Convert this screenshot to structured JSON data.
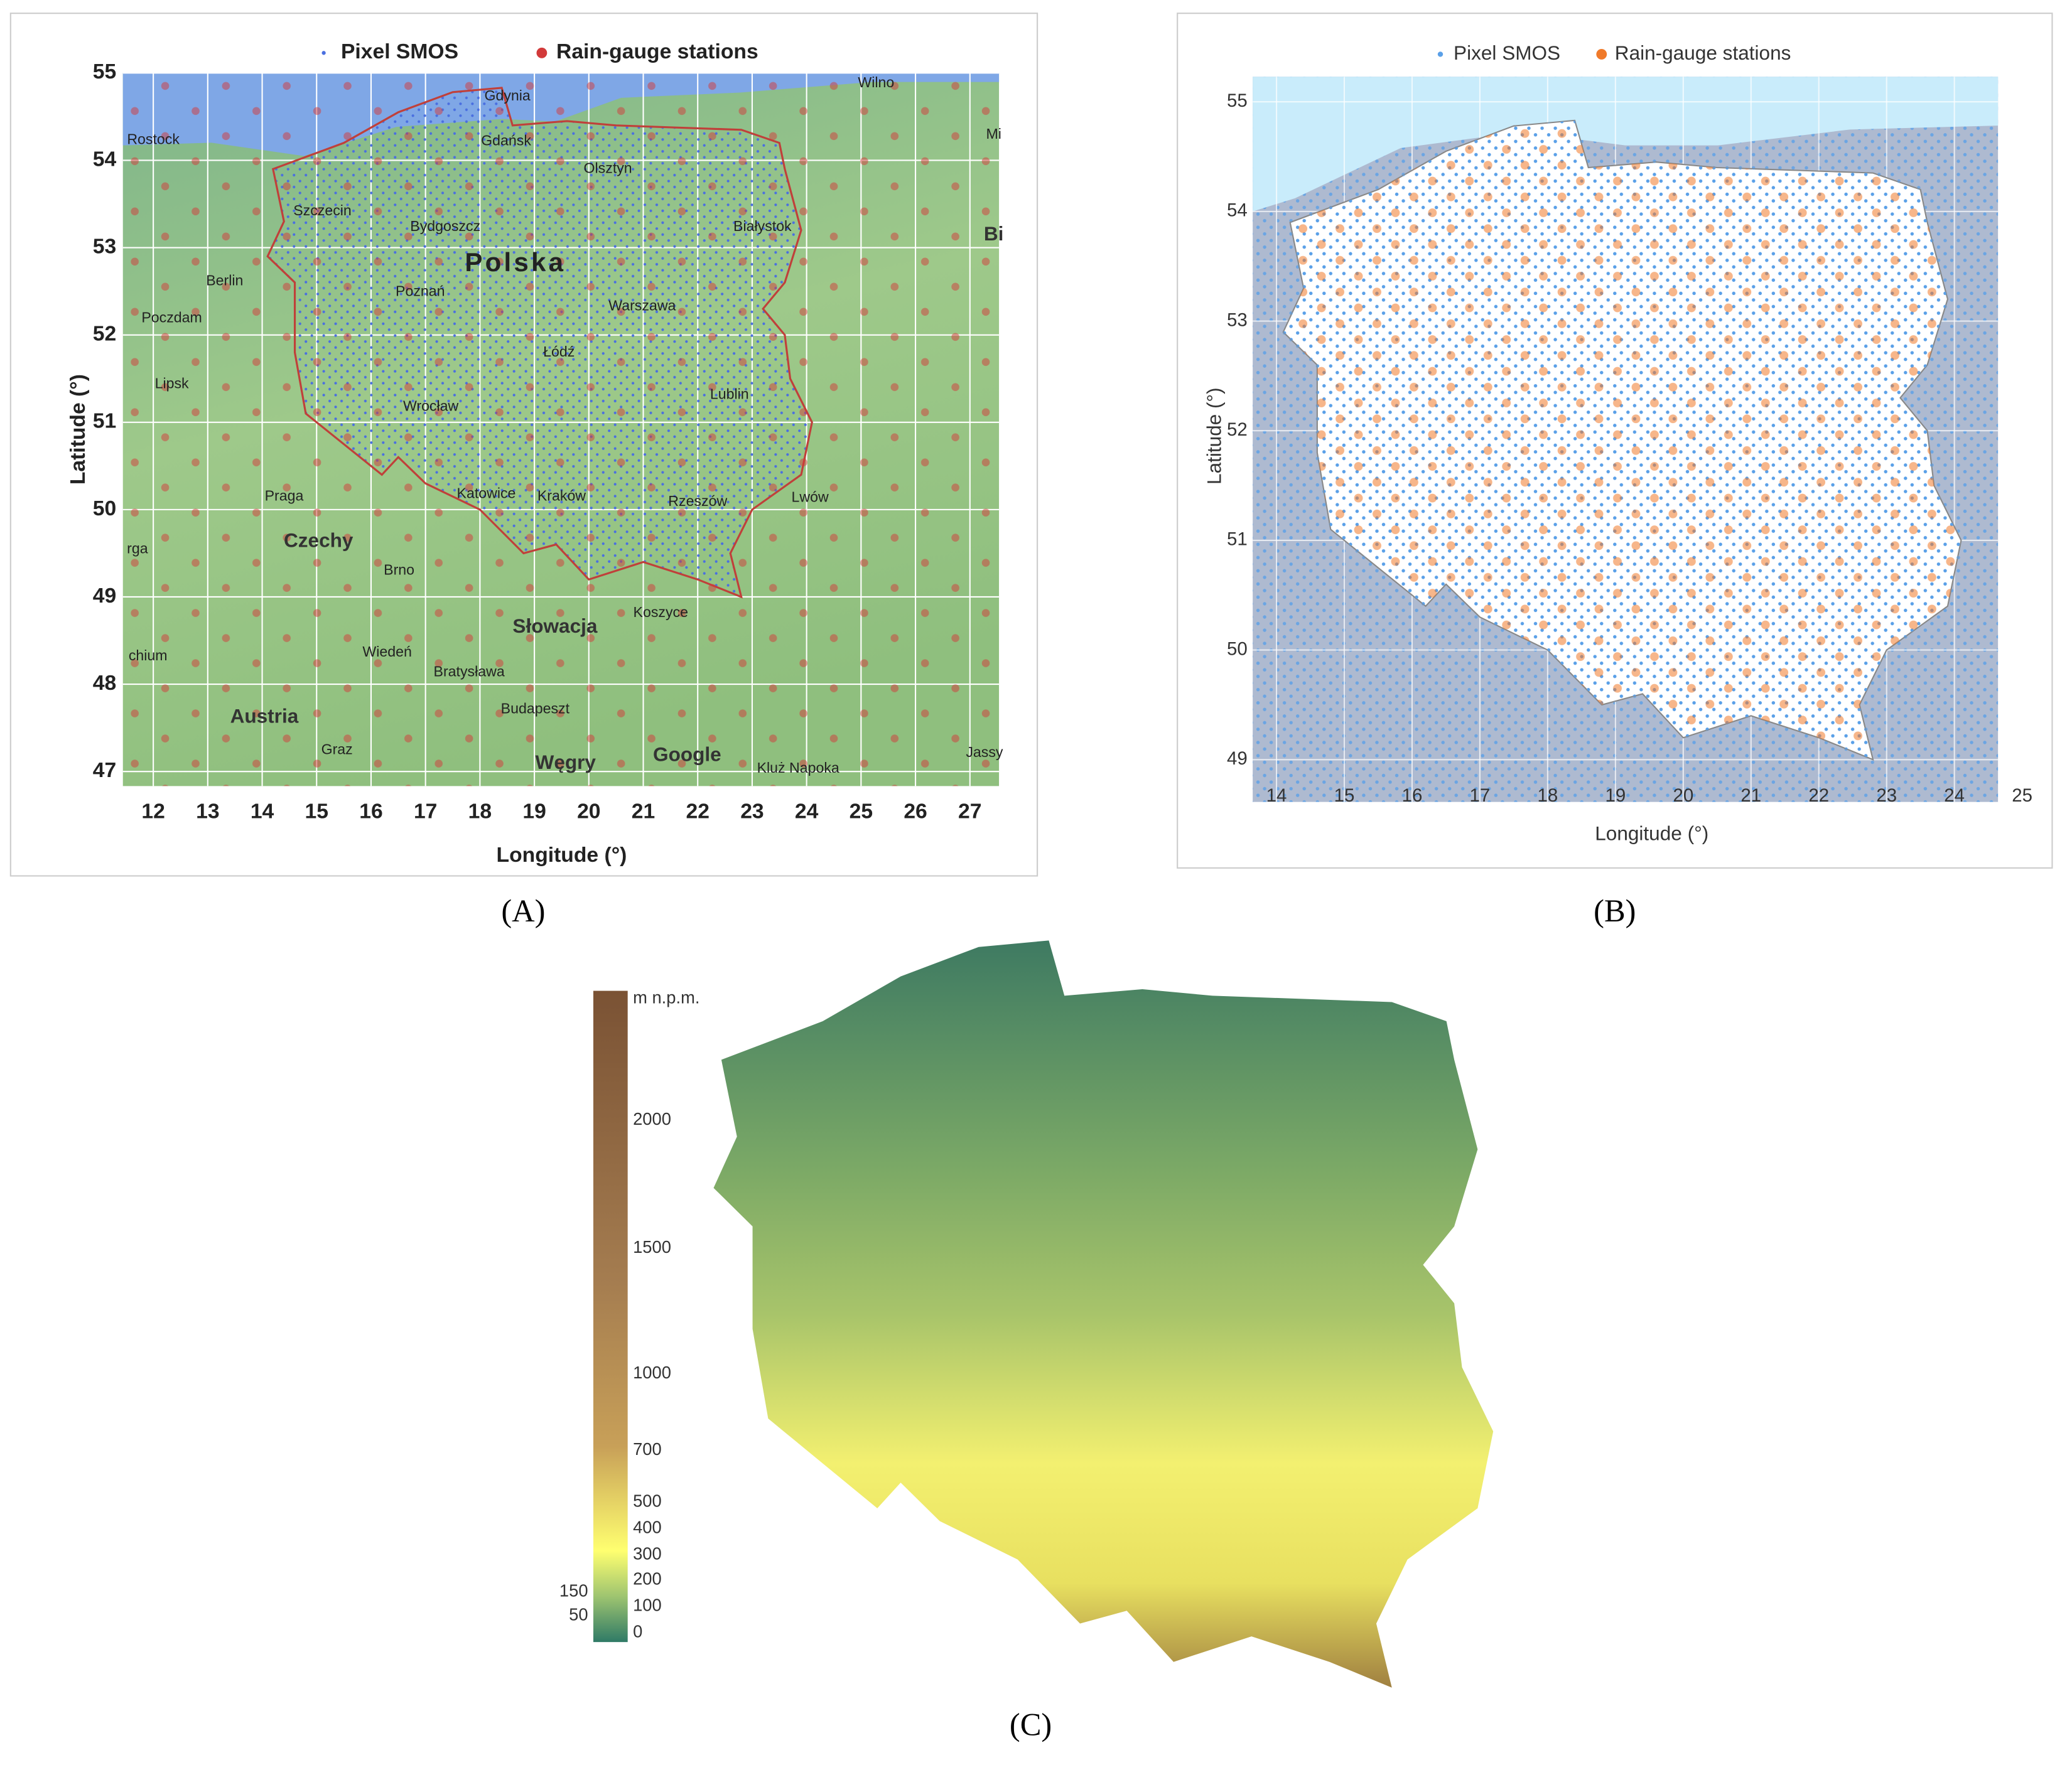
{
  "panel_a": {
    "legend": [
      "Pixel SMOS",
      "Rain-gauge stations"
    ],
    "x_label": "Longitude (°)",
    "y_label": "Latitude (°)",
    "x_ticks": [
      "12",
      "13",
      "14",
      "15",
      "16",
      "17",
      "18",
      "19",
      "20",
      "21",
      "22",
      "23",
      "24",
      "25",
      "26",
      "27"
    ],
    "y_ticks": [
      "47",
      "48",
      "49",
      "50",
      "51",
      "52",
      "53",
      "54",
      "55"
    ],
    "places": [
      "Gdynia",
      "Gdańsk",
      "Rostock",
      "Szczecin",
      "Bydgoszcz",
      "Polska",
      "Olsztyn",
      "Białystok",
      "Berlin",
      "Poczdam",
      "Poznań",
      "Warszawa",
      "Łódź",
      "Lipsk",
      "Wrocław",
      "Lublin",
      "Praga",
      "Katowice",
      "Kraków",
      "Rzeszów",
      "Lwów",
      "Czechy",
      "Brno",
      "Wiedeń",
      "Bratysława",
      "Słowacja",
      "Koszyce",
      "Austria",
      "Graz",
      "Budapeszt",
      "Węgry",
      "Kluż Napoka",
      "Wilno",
      "Google",
      "Mi",
      "Bi",
      "Jassy",
      "rga",
      "chium"
    ],
    "caption": "(A)"
  },
  "panel_b": {
    "legend": [
      "Pixel SMOS",
      "Rain-gauge stations"
    ],
    "x_label": "Longitude (°)",
    "y_label": "Latitude (°)",
    "x_ticks": [
      "14",
      "15",
      "16",
      "17",
      "18",
      "19",
      "20",
      "21",
      "22",
      "23",
      "24",
      "25"
    ],
    "y_ticks": [
      "49",
      "50",
      "51",
      "52",
      "53",
      "54",
      "55"
    ],
    "caption": "(B)"
  },
  "panel_c": {
    "unit": "m n.p.m.",
    "scale_labels": [
      "2000",
      "1500",
      "1000",
      "700",
      "500",
      "400",
      "300",
      "200",
      "100",
      "0"
    ],
    "scale_labels_left": [
      "150",
      "50"
    ],
    "caption": "(C)"
  }
}
